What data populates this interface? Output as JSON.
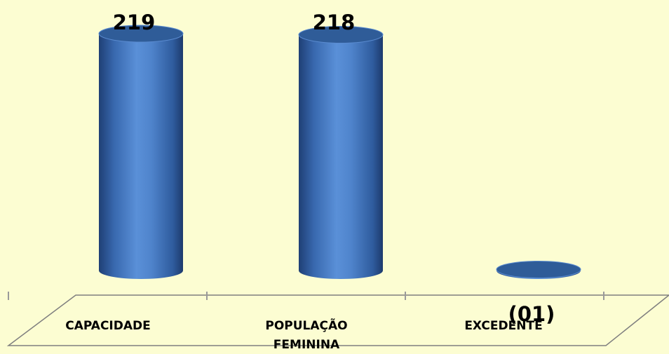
{
  "chart_data": {
    "type": "bar",
    "style": "3d-cylinder",
    "categories": [
      "CAPACIDADE",
      "POPULAÇÃO FEMININA",
      "EXCEDENTE"
    ],
    "category_lines": [
      [
        "CAPACIDADE"
      ],
      [
        "POPULAÇÃO",
        "FEMININA"
      ],
      [
        "EXCEDENTE"
      ]
    ],
    "values": [
      219,
      218,
      1
    ],
    "data_labels": [
      "219",
      "218",
      "(01)"
    ],
    "title": "",
    "xlabel": "",
    "ylabel": "",
    "ylim": [
      0,
      219
    ],
    "grid": false,
    "legend": "none"
  },
  "colors": {
    "background": "#fcfdd2",
    "bar": "#4a7cc4",
    "bar_top": "#2f5c98",
    "floor_stroke": "#7f7f7f"
  }
}
